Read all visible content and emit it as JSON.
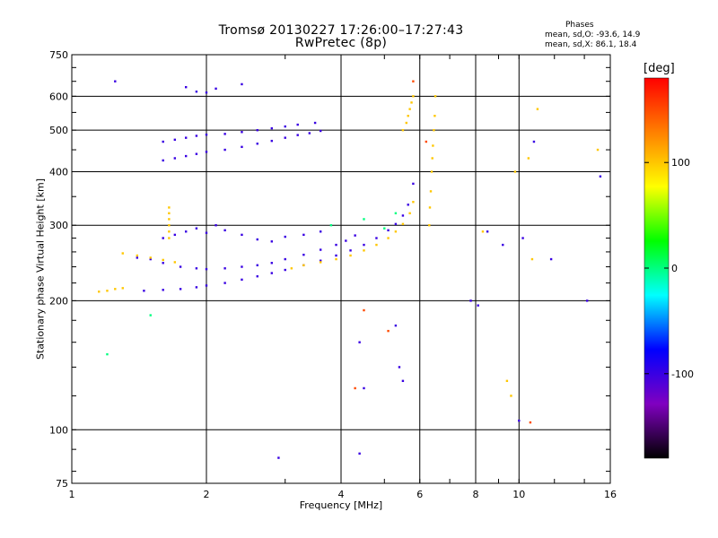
{
  "header": {
    "title_line1": "Tromsø 20130227 17:26:00–17:27:43",
    "title_line2": "RwPretec (8p)",
    "stats_heading": "Phases",
    "stats_o": "mean, sd,O: -93.6, 14.9",
    "stats_x": "mean, sd,X: 86.1, 18.4"
  },
  "colorbar": {
    "label": "[deg]",
    "ticks": [
      "-100",
      "0",
      "100"
    ],
    "tick_values": [
      -100,
      0,
      100
    ],
    "range": [
      -180,
      180
    ],
    "palette": [
      "#000000",
      "#8000c0",
      "#0000ff",
      "#00ffff",
      "#00ff00",
      "#ffff00",
      "#ff8000",
      "#ff0000"
    ]
  },
  "chart_data": {
    "type": "scatter",
    "title": "Tromsø 20130227 17:26:00–17:27:43",
    "subtitle": "RwPretec (8p)",
    "xlabel": "Frequency [MHz]",
    "ylabel": "Stationary phase Virtual Height [km]",
    "xscale": "log",
    "yscale": "log",
    "xlim": [
      1,
      16
    ],
    "ylim": [
      75,
      750
    ],
    "xticks": [
      1,
      2,
      4,
      6,
      8,
      10,
      16
    ],
    "xtick_labels": [
      "1",
      "2",
      "4",
      "6",
      "8",
      "10",
      "16"
    ],
    "yticks": [
      75,
      100,
      200,
      300,
      400,
      500,
      600,
      750
    ],
    "ytick_labels": [
      "75",
      "100",
      "200",
      "300",
      "400",
      "500",
      "600",
      "750"
    ],
    "grid": true,
    "color_scale": "phase [deg], -180 to 180",
    "series": [
      {
        "x": [
          1.45,
          1.6,
          1.75,
          1.9,
          2.0,
          2.2,
          2.4,
          2.6,
          2.8,
          3.0,
          3.3,
          3.6,
          3.9,
          4.2,
          4.5,
          4.8,
          5.1,
          5.3,
          5.5,
          5.65,
          5.8
        ],
        "y": [
          211,
          212,
          213,
          215,
          217,
          220,
          224,
          228,
          232,
          236,
          242,
          248,
          255,
          262,
          270,
          280,
          292,
          302,
          316,
          335,
          375
        ],
        "phase": -100
      },
      {
        "x": [
          1.4,
          1.5,
          1.6,
          1.75,
          1.9,
          2.0,
          2.2,
          2.4,
          2.6,
          2.8,
          3.0,
          3.3,
          3.6,
          3.9,
          4.1,
          4.3
        ],
        "y": [
          252,
          250,
          245,
          240,
          238,
          237,
          238,
          240,
          242,
          245,
          250,
          256,
          263,
          270,
          276,
          284
        ],
        "phase": -100
      },
      {
        "x": [
          1.3,
          1.4,
          1.5,
          1.6,
          1.7
        ],
        "y": [
          258,
          255,
          252,
          249,
          246
        ],
        "phase": 100
      },
      {
        "x": [
          3.1,
          3.3,
          3.6,
          3.9,
          4.2,
          4.5,
          4.8,
          5.1,
          5.3,
          5.5,
          5.7,
          5.8
        ],
        "y": [
          238,
          242,
          246,
          250,
          255,
          262,
          270,
          280,
          290,
          302,
          320,
          340
        ],
        "phase": 100
      },
      {
        "x": [
          1.15,
          1.2,
          1.25,
          1.3
        ],
        "y": [
          210,
          211,
          213,
          214
        ],
        "phase": 100
      },
      {
        "x": [
          1.6,
          1.7,
          1.8,
          1.9,
          2.0,
          2.2,
          2.4,
          2.6,
          2.8,
          3.0,
          3.2,
          3.4,
          3.6
        ],
        "y": [
          425,
          430,
          435,
          440,
          445,
          450,
          457,
          465,
          472,
          480,
          487,
          492,
          498
        ],
        "phase": -100
      },
      {
        "x": [
          1.6,
          1.7,
          1.8,
          1.9,
          2.0,
          2.2,
          2.4,
          2.6,
          2.8,
          3.0,
          3.2,
          3.5
        ],
        "y": [
          470,
          475,
          480,
          485,
          488,
          490,
          495,
          500,
          505,
          510,
          515,
          520
        ],
        "phase": -100
      },
      {
        "x": [
          6.3,
          6.32,
          6.35,
          6.38,
          6.4,
          6.42,
          6.45,
          6.48,
          6.5
        ],
        "y": [
          300,
          330,
          360,
          400,
          430,
          460,
          500,
          540,
          600
        ],
        "phase": 100
      },
      {
        "x": [
          5.5,
          5.6,
          5.65,
          5.7,
          5.75,
          5.8
        ],
        "y": [
          500,
          520,
          540,
          560,
          580,
          600
        ],
        "phase": 100
      },
      {
        "x": [
          1.8,
          1.9,
          2.0,
          2.1
        ],
        "y": [
          630,
          615,
          612,
          625
        ],
        "phase": -100
      },
      {
        "x": [
          1.6,
          1.7,
          1.8,
          1.9,
          2.0,
          2.1,
          2.2,
          2.4,
          2.6,
          2.8,
          3.0,
          3.3,
          3.6
        ],
        "y": [
          280,
          285,
          290,
          295,
          288,
          300,
          292,
          285,
          278,
          275,
          282,
          285,
          290
        ],
        "phase": -100
      },
      {
        "x": [
          1.65,
          1.65,
          1.65,
          1.65,
          1.65,
          1.65
        ],
        "y": [
          330,
          320,
          310,
          300,
          290,
          280
        ],
        "phase": 100
      },
      {
        "x": [
          1.25,
          2.4,
          4.4,
          4.4,
          5.3,
          5.4,
          5.5,
          2.9,
          4.5
        ],
        "y": [
          650,
          640,
          160,
          88,
          175,
          140,
          130,
          86,
          125
        ],
        "phase": -100
      },
      {
        "x": [
          7.8,
          8.1,
          8.5,
          9.2,
          10.0,
          10.2,
          10.8,
          11.8,
          14.2,
          15.2
        ],
        "y": [
          200,
          195,
          290,
          270,
          105,
          280,
          470,
          250,
          200,
          390
        ],
        "phase": -100
      },
      {
        "x": [
          8.3,
          9.4,
          9.6,
          9.8,
          10.5,
          10.7,
          11.0,
          15.0
        ],
        "y": [
          290,
          130,
          120,
          400,
          430,
          250,
          560,
          450
        ],
        "phase": 100
      },
      {
        "x": [
          1.2,
          1.5,
          3.8,
          4.5,
          5.0,
          5.3
        ],
        "y": [
          150,
          185,
          300,
          310,
          295,
          320
        ],
        "phase": 0
      },
      {
        "x": [
          4.3,
          4.5,
          5.1,
          5.8,
          6.2,
          10.6
        ],
        "y": [
          125,
          190,
          170,
          650,
          470,
          104
        ],
        "phase": 150
      }
    ]
  }
}
